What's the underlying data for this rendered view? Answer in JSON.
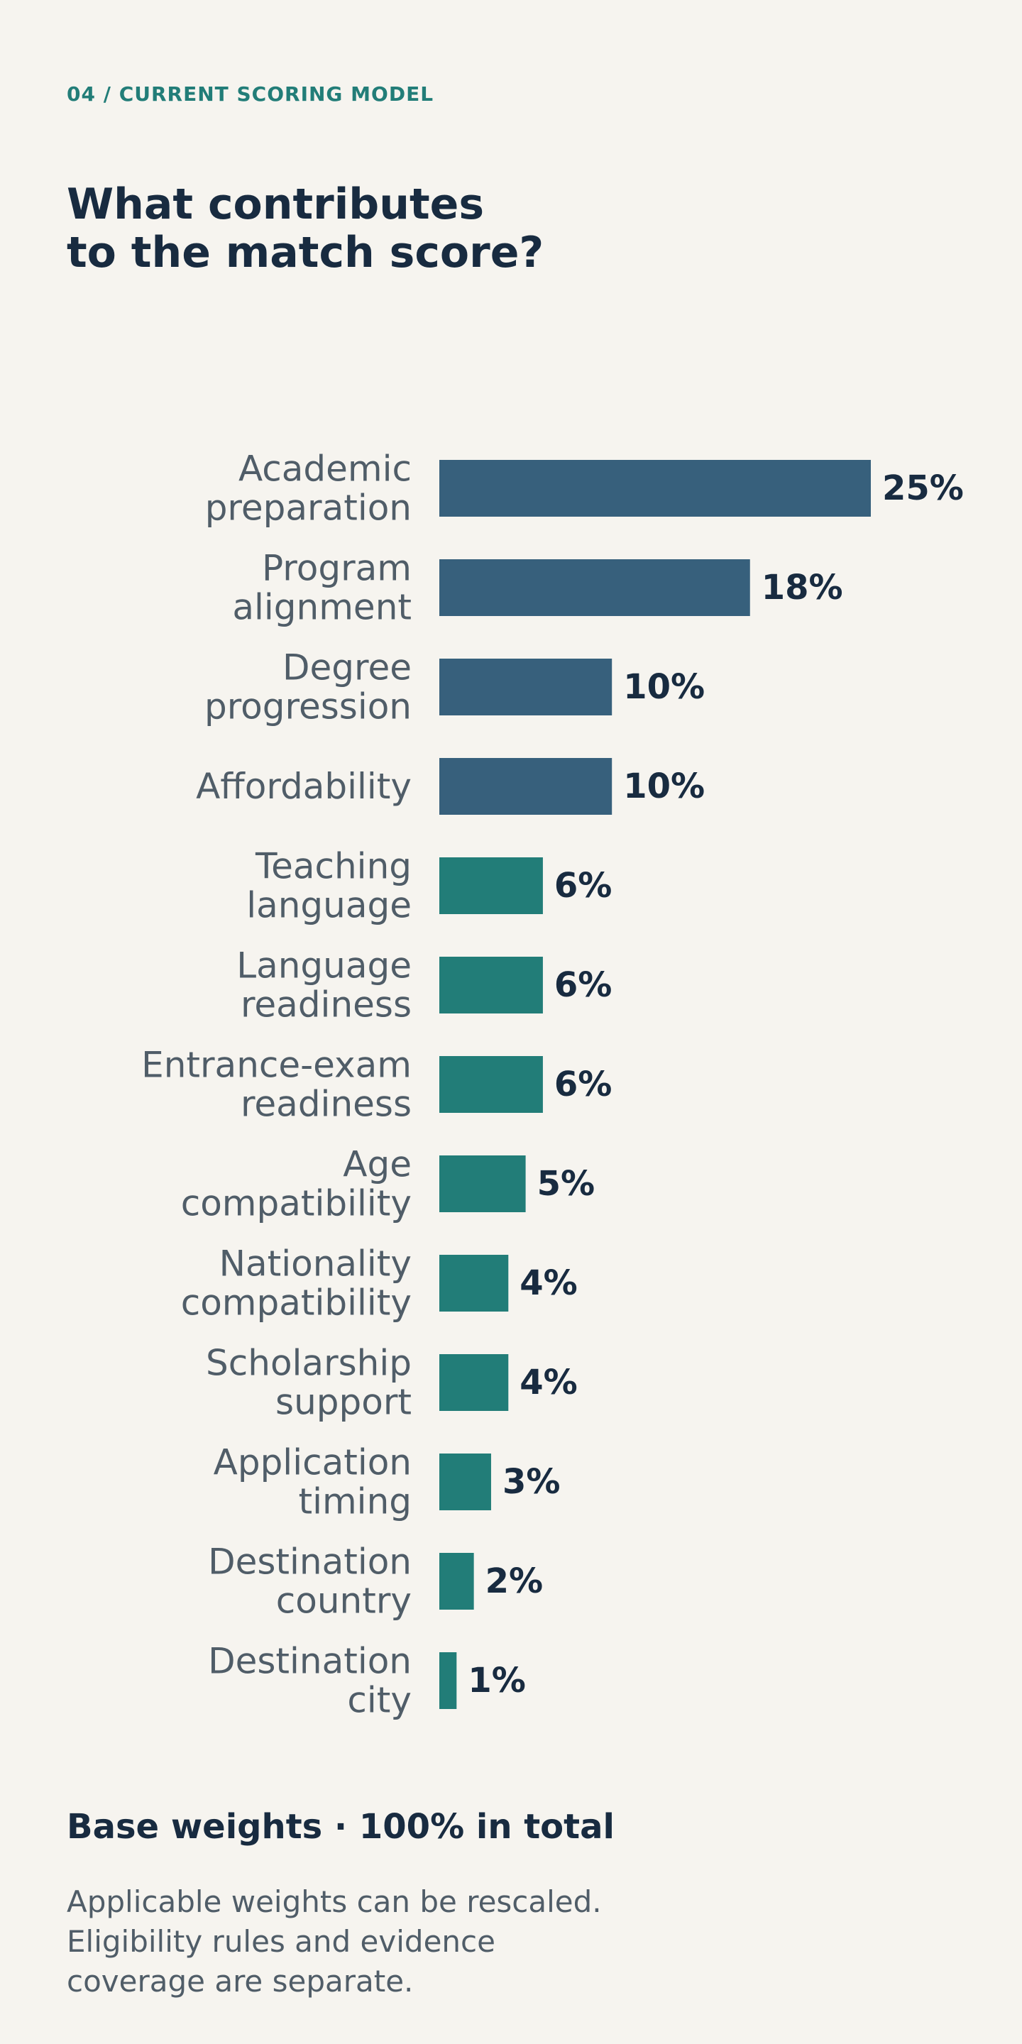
{
  "header": {
    "eyebrow": "04 / CURRENT SCORING MODEL",
    "title_lines": [
      "What contributes",
      "to the match score?"
    ]
  },
  "chart_data": {
    "type": "bar",
    "orientation": "horizontal",
    "categories": [
      [
        "Academic",
        "preparation"
      ],
      [
        "Program",
        "alignment"
      ],
      [
        "Degree",
        "progression"
      ],
      [
        "Affordability"
      ],
      [
        "Teaching",
        "language"
      ],
      [
        "Language",
        "readiness"
      ],
      [
        "Entrance-exam",
        "readiness"
      ],
      [
        "Age",
        "compatibility"
      ],
      [
        "Nationality",
        "compatibility"
      ],
      [
        "Scholarship",
        "support"
      ],
      [
        "Application",
        "timing"
      ],
      [
        "Destination",
        "country"
      ],
      [
        "Destination",
        "city"
      ]
    ],
    "values": [
      25,
      18,
      10,
      10,
      6,
      6,
      6,
      5,
      4,
      4,
      3,
      2,
      1
    ],
    "value_labels": [
      "25%",
      "18%",
      "10%",
      "10%",
      "6%",
      "6%",
      "6%",
      "5%",
      "4%",
      "4%",
      "3%",
      "2%",
      "1%"
    ],
    "bar_colors": [
      "#37607c",
      "#37607c",
      "#37607c",
      "#37607c",
      "#227d78",
      "#227d78",
      "#227d78",
      "#227d78",
      "#227d78",
      "#227d78",
      "#227d78",
      "#227d78",
      "#227d78"
    ],
    "unit": "%",
    "xlim": [
      0,
      25
    ],
    "grid": false,
    "legend": "none"
  },
  "footer": {
    "summary": "Base weights · 100% in total",
    "note_lines": [
      "Applicable weights can be rescaled.",
      "Eligibility rules and evidence",
      "coverage are separate."
    ]
  }
}
